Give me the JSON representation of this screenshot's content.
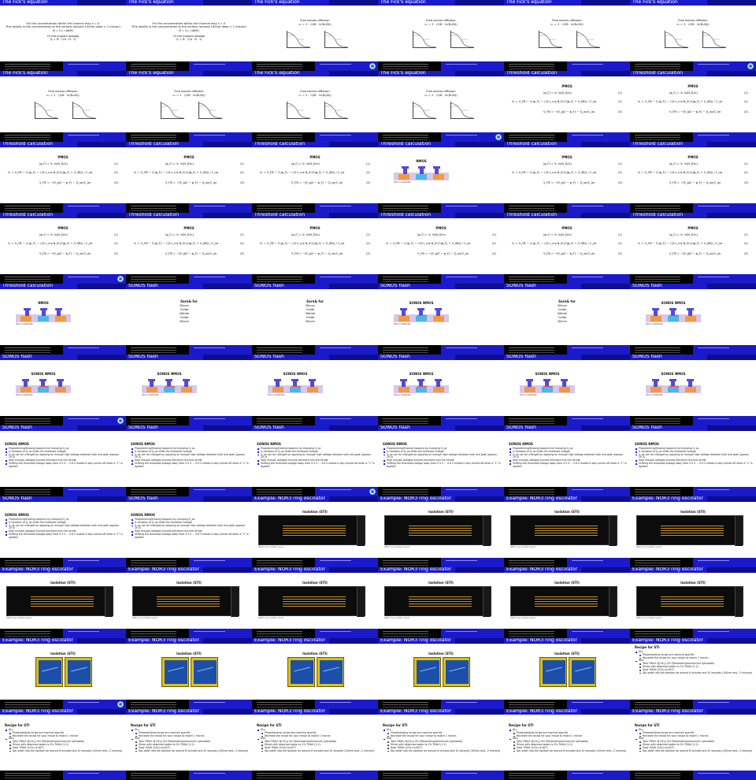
{
  "strings": {
    "ficks": "The Fick's equation",
    "threshold": "Threshold calculation",
    "sonos": "SONOS flash",
    "nor3": "Example: NOR3 ring oscillator",
    "fick_text_1": "For the concentration within the channel may x = 0",
    "fick_text_2": "This results in the concentration at the surface (around 100nm deep ≈ 1 micron)",
    "fick_text_3": "Or the implant dosage",
    "free_excess": "Free excess diffusion",
    "pmos": "PMOS",
    "nmos": "NMOS",
    "sonos_nmos": "SONOS NMOS",
    "sonos_list_title": "Sarn& for",
    "silicon_substrate": "Silicon substrate",
    "eq_labels": [
      "(1)",
      "(2)",
      "(3)"
    ],
    "isolation": "Isolation (STI)",
    "recipe": "Recipe for STI",
    "layout_caption": "NOR3 ring oscillator layout",
    "sonos_list": [
      "Silicon",
      "Oxide",
      "Nitride",
      "Oxide",
      "Silicon"
    ],
    "sonos_bullets": [
      "Programming/Erasing happens by changing Q_ox",
      "A variation of Q_ox shifts the threshold voltage",
      "Q_ox can be changed by applying an enough high voltage between bulk and gate (approx. 20 V)",
      "High enough voltages tunnels electrons into the nitride",
      "Shifting the threshold voltage away from 0.5 V ... 0.6 V makes it stay turned off when a \"1\" is applied"
    ],
    "recipe_items": [
      {
        "t": "Dry",
        "lvl": 0
      },
      {
        "t": "Photoresisting recipe are machine specific",
        "lvl": 1
      },
      {
        "t": "Recreate the recipe for your recipe to match 1 micron",
        "lvl": 1
      },
      {
        "t": "Wet",
        "lvl": 0
      },
      {
        "t": "Take TMAH: Ⅱ[CH₃]₄ OH (Tetramethylammonium hydroxide)",
        "lvl": 1
      },
      {
        "t": "Dilute with deionised water to 2% TMAH (1:1)",
        "lvl": 1
      },
      {
        "t": "Heat TMAH (20%) to 80°C",
        "lvl": 1
      },
      {
        "t": "Dip wafer into the solution for around 8 minutes and 10 seconds (100nm test...2 microns)",
        "lvl": 1
      }
    ]
  },
  "slides": [
    {
      "title": "ficks",
      "kind": "fick_text",
      "logo": false
    },
    {
      "title": "ficks",
      "kind": "fick_text",
      "logo": false
    },
    {
      "title": "ficks",
      "kind": "fick_plot",
      "logo": true
    },
    {
      "title": "ficks",
      "kind": "fick_plot",
      "logo": false
    },
    {
      "title": "ficks",
      "kind": "fick_plot",
      "logo": false
    },
    {
      "title": "ficks",
      "kind": "fick_plot",
      "logo": true
    },
    {
      "title": "ficks",
      "kind": "fick_plot",
      "logo": false
    },
    {
      "title": "ficks",
      "kind": "fick_plot",
      "logo": false
    },
    {
      "title": "ficks",
      "kind": "fick_plot",
      "logo": false
    },
    {
      "title": "ficks",
      "kind": "fick_plot",
      "logo": true
    },
    {
      "title": "threshold",
      "kind": "pmos",
      "logo": false
    },
    {
      "title": "threshold",
      "kind": "pmos",
      "logo": false
    },
    {
      "title": "threshold",
      "kind": "pmos",
      "logo": false
    },
    {
      "title": "threshold",
      "kind": "pmos",
      "logo": false
    },
    {
      "title": "threshold",
      "kind": "pmos",
      "logo": false
    },
    {
      "title": "threshold",
      "kind": "nmos",
      "logo": false
    },
    {
      "title": "threshold",
      "kind": "pmos",
      "logo": false
    },
    {
      "title": "threshold",
      "kind": "pmos",
      "logo": false
    },
    {
      "title": "threshold",
      "kind": "pmos",
      "logo": true
    },
    {
      "title": "threshold",
      "kind": "pmos",
      "logo": false
    },
    {
      "title": "threshold",
      "kind": "pmos",
      "logo": false
    },
    {
      "title": "threshold",
      "kind": "pmos",
      "logo": false
    },
    {
      "title": "threshold",
      "kind": "pmos",
      "logo": false
    },
    {
      "title": "threshold",
      "kind": "pmos",
      "logo": false
    },
    {
      "title": "threshold",
      "kind": "nmos",
      "logo": false
    },
    {
      "title": "sonos",
      "kind": "sonos_list",
      "logo": false
    },
    {
      "title": "sonos",
      "kind": "sonos_list",
      "logo": false
    },
    {
      "title": "sonos",
      "kind": "sonos_nmos",
      "logo": false
    },
    {
      "title": "sonos",
      "kind": "sonos_list",
      "logo": false
    },
    {
      "title": "sonos",
      "kind": "sonos_nmos",
      "logo": false
    },
    {
      "title": "sonos",
      "kind": "sonos_nmos",
      "logo": true
    },
    {
      "title": "sonos",
      "kind": "sonos_nmos",
      "logo": false
    },
    {
      "title": "sonos",
      "kind": "sonos_nmos",
      "logo": false
    },
    {
      "title": "sonos",
      "kind": "sonos_nmos",
      "logo": false
    },
    {
      "title": "sonos",
      "kind": "sonos_nmos",
      "logo": false
    },
    {
      "title": "sonos",
      "kind": "sonos_nmos",
      "logo": false
    },
    {
      "title": "sonos",
      "kind": "sonos_bullets",
      "logo": false
    },
    {
      "title": "sonos",
      "kind": "sonos_bullets",
      "logo": false
    },
    {
      "title": "sonos",
      "kind": "sonos_bullets",
      "logo": true
    },
    {
      "title": "sonos",
      "kind": "sonos_bullets",
      "logo": false
    },
    {
      "title": "sonos",
      "kind": "sonos_bullets",
      "logo": false
    },
    {
      "title": "sonos",
      "kind": "sonos_bullets",
      "logo": false
    },
    {
      "title": "sonos",
      "kind": "sonos_bullets",
      "logo": false
    },
    {
      "title": "sonos",
      "kind": "sonos_bullets",
      "logo": false
    },
    {
      "title": "nor3",
      "kind": "layout",
      "logo": false
    },
    {
      "title": "nor3",
      "kind": "layout",
      "logo": false
    },
    {
      "title": "nor3",
      "kind": "layout",
      "logo": false
    },
    {
      "title": "nor3",
      "kind": "layout",
      "logo": false
    },
    {
      "title": "nor3",
      "kind": "layout",
      "logo": false
    },
    {
      "title": "nor3",
      "kind": "layout",
      "logo": false
    },
    {
      "title": "nor3",
      "kind": "layout",
      "logo": false
    },
    {
      "title": "nor3",
      "kind": "layout",
      "logo": false
    },
    {
      "title": "nor3",
      "kind": "layout",
      "logo": false
    },
    {
      "title": "nor3",
      "kind": "layout",
      "logo": false
    },
    {
      "title": "nor3",
      "kind": "photo",
      "logo": true
    },
    {
      "title": "nor3",
      "kind": "photo",
      "logo": false
    },
    {
      "title": "nor3",
      "kind": "photo",
      "logo": false
    },
    {
      "title": "nor3",
      "kind": "photo",
      "logo": false
    },
    {
      "title": "nor3",
      "kind": "photo",
      "logo": false
    },
    {
      "title": "nor3",
      "kind": "recipe_short",
      "logo": false
    },
    {
      "title": "nor3",
      "kind": "recipe",
      "logo": false
    },
    {
      "title": "nor3",
      "kind": "recipe",
      "logo": false
    },
    {
      "title": "nor3",
      "kind": "recipe",
      "logo": false
    },
    {
      "title": "nor3",
      "kind": "recipe",
      "logo": false
    },
    {
      "title": "nor3",
      "kind": "recipe",
      "logo": false
    },
    {
      "title": "nor3",
      "kind": "recipe",
      "logo": false
    }
  ]
}
